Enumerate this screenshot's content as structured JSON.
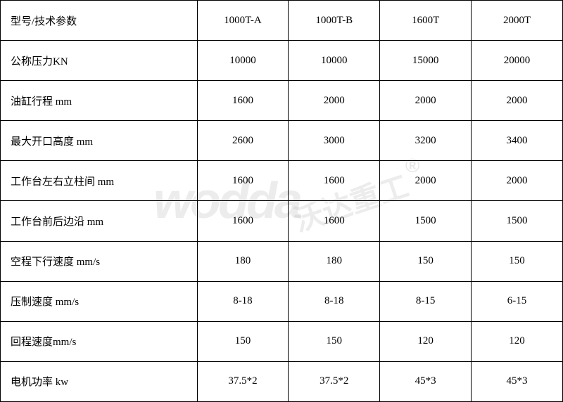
{
  "table": {
    "columns": [
      "型号/技术参数",
      "1000T-A",
      "1000T-B",
      "1600T",
      "2000T"
    ],
    "rows": [
      {
        "label": "公称压力KN",
        "values": [
          "10000",
          "10000",
          "15000",
          "20000"
        ]
      },
      {
        "label": "油缸行程 mm",
        "values": [
          "1600",
          "2000",
          "2000",
          "2000"
        ]
      },
      {
        "label": "最大开口高度 mm",
        "values": [
          "2600",
          "3000",
          "3200",
          "3400"
        ]
      },
      {
        "label": "工作台左右立柱间 mm",
        "values": [
          "1600",
          "1600",
          "2000",
          "2000"
        ]
      },
      {
        "label": "工作台前后边沿  mm",
        "values": [
          "1600",
          "1600",
          "1500",
          "1500"
        ]
      },
      {
        "label": "空程下行速度 mm/s",
        "values": [
          "180",
          "180",
          "150",
          "150"
        ]
      },
      {
        "label": "压制速度 mm/s",
        "values": [
          "8-18",
          "8-18",
          "8-15",
          "6-15"
        ]
      },
      {
        "label": "回程速度mm/s",
        "values": [
          "150",
          "150",
          "120",
          "120"
        ]
      },
      {
        "label": "电机功率 kw",
        "values": [
          "37.5*2",
          "37.5*2",
          "45*3",
          "45*3"
        ]
      }
    ],
    "border_color": "#000000",
    "text_color": "#000000",
    "background_color": "#ffffff",
    "font_size": 15,
    "label_col_width": 280,
    "data_col_width": 130
  },
  "watermark": {
    "logo_text": "wodda",
    "brand_text": "沃达重工",
    "registered": "®",
    "color": "rgba(180,180,180,0.25)"
  }
}
